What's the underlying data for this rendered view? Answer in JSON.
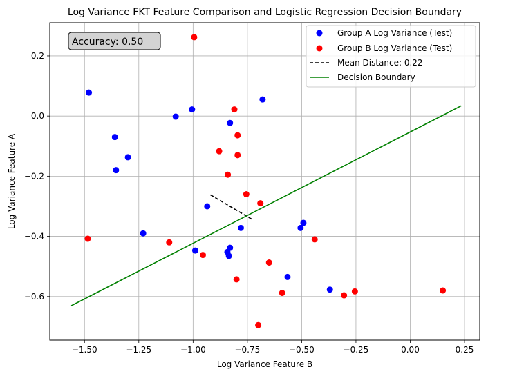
{
  "chart_data": {
    "type": "scatter",
    "title": "Log Variance FKT Feature Comparison and Logistic Regression Decision Boundary",
    "xlabel": "Log Variance Feature B",
    "ylabel": "Log Variance Feature A",
    "xlim": [
      -1.66,
      0.32
    ],
    "ylim": [
      -0.745,
      0.31
    ],
    "xticks": [
      -1.5,
      -1.25,
      -1.0,
      -0.75,
      -0.5,
      -0.25,
      0.0,
      0.25
    ],
    "xtick_labels": [
      "−1.50",
      "−1.25",
      "−1.00",
      "−0.75",
      "−0.50",
      "−0.25",
      "0.00",
      "0.25"
    ],
    "yticks": [
      0.2,
      0.0,
      -0.2,
      -0.4,
      -0.6
    ],
    "ytick_labels": [
      "0.2",
      "0.0",
      "−0.2",
      "−0.4",
      "−0.6"
    ],
    "grid": true,
    "legend_position": "top-right",
    "annotation": "Accuracy: 0.50",
    "series": [
      {
        "name": "Group A Log Variance (Test)",
        "kind": "scatter",
        "color": "#0000ff",
        "points": [
          [
            -1.48,
            0.078
          ],
          [
            -1.36,
            -0.07
          ],
          [
            -1.355,
            -0.18
          ],
          [
            -1.3,
            -0.137
          ],
          [
            -1.23,
            -0.39
          ],
          [
            -1.08,
            -0.002
          ],
          [
            -1.005,
            0.022
          ],
          [
            -0.99,
            -0.447
          ],
          [
            -0.935,
            -0.3
          ],
          [
            -0.842,
            -0.452
          ],
          [
            -0.835,
            -0.465
          ],
          [
            -0.83,
            -0.438
          ],
          [
            -0.83,
            -0.023
          ],
          [
            -0.78,
            -0.372
          ],
          [
            -0.68,
            0.055
          ],
          [
            -0.565,
            -0.535
          ],
          [
            -0.505,
            -0.372
          ],
          [
            -0.492,
            -0.355
          ],
          [
            -0.37,
            -0.577
          ]
        ]
      },
      {
        "name": "Group B Log Variance (Test)",
        "kind": "scatter",
        "color": "#ff0000",
        "points": [
          [
            -1.485,
            -0.408
          ],
          [
            -1.11,
            -0.42
          ],
          [
            -0.995,
            0.262
          ],
          [
            -0.955,
            -0.462
          ],
          [
            -0.88,
            -0.117
          ],
          [
            -0.84,
            -0.195
          ],
          [
            -0.81,
            0.022
          ],
          [
            -0.795,
            -0.064
          ],
          [
            -0.795,
            -0.13
          ],
          [
            -0.8,
            -0.543
          ],
          [
            -0.755,
            -0.26
          ],
          [
            -0.7,
            -0.695
          ],
          [
            -0.69,
            -0.29
          ],
          [
            -0.65,
            -0.487
          ],
          [
            -0.59,
            -0.588
          ],
          [
            -0.44,
            -0.41
          ],
          [
            -0.305,
            -0.596
          ],
          [
            -0.255,
            -0.583
          ],
          [
            0.15,
            -0.58
          ]
        ]
      },
      {
        "name": "Mean Distance: 0.22",
        "kind": "line",
        "style": "dashed",
        "color": "#000000",
        "points": [
          [
            -0.92,
            -0.262
          ],
          [
            -0.725,
            -0.345
          ]
        ]
      },
      {
        "name": "Decision Boundary",
        "kind": "line",
        "style": "solid",
        "color": "#008000",
        "points": [
          [
            -1.565,
            -0.632
          ],
          [
            0.235,
            0.034
          ]
        ]
      }
    ]
  }
}
